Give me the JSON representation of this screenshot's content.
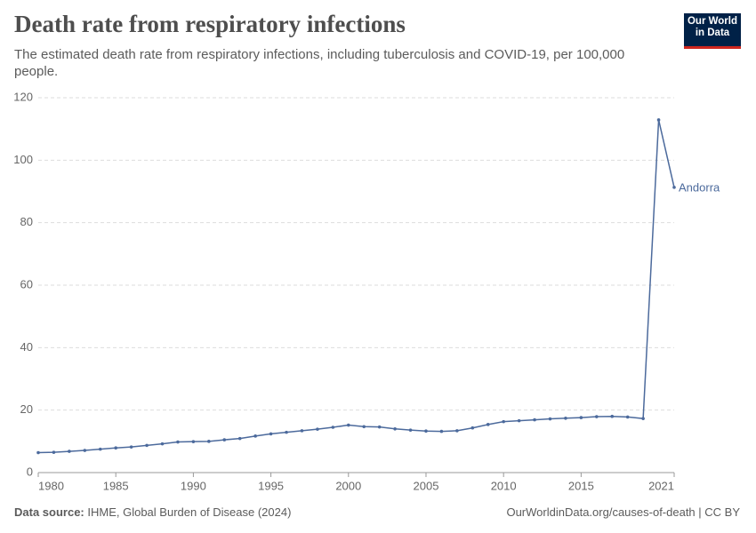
{
  "chart_data": {
    "type": "line",
    "title": "Death rate from respiratory infections",
    "subtitle": "The estimated death rate from respiratory infections, including tuberculosis and COVID-19, per 100,000 people.",
    "x": [
      1980,
      1981,
      1982,
      1983,
      1984,
      1985,
      1986,
      1987,
      1988,
      1989,
      1990,
      1991,
      1992,
      1993,
      1994,
      1995,
      1996,
      1997,
      1998,
      1999,
      2000,
      2001,
      2002,
      2003,
      2004,
      2005,
      2006,
      2007,
      2008,
      2009,
      2010,
      2011,
      2012,
      2013,
      2014,
      2015,
      2016,
      2017,
      2018,
      2019,
      2020,
      2021
    ],
    "series": [
      {
        "name": "Andorra",
        "color": "#4c6a9c",
        "values": [
          6.4,
          6.5,
          6.8,
          7.1,
          7.5,
          7.9,
          8.2,
          8.7,
          9.2,
          9.8,
          9.9,
          10.0,
          10.5,
          10.9,
          11.7,
          12.4,
          12.9,
          13.4,
          13.9,
          14.5,
          15.2,
          14.7,
          14.6,
          14.0,
          13.6,
          13.3,
          13.2,
          13.4,
          14.3,
          15.4,
          16.3,
          16.6,
          16.9,
          17.2,
          17.4,
          17.6,
          17.9,
          18.0,
          17.8,
          17.3,
          112.9,
          91.3
        ]
      }
    ],
    "xlim": [
      1980,
      2021
    ],
    "xticks": [
      1980,
      1985,
      1990,
      1995,
      2000,
      2005,
      2010,
      2015,
      2021
    ],
    "ylim": [
      0,
      120
    ],
    "yticks": [
      0,
      20,
      40,
      60,
      80,
      100,
      120
    ],
    "grid": true,
    "source_label": "Data source:",
    "source": "IHME, Global Burden of Disease (2024)",
    "url": "OurWorldinData.org/causes-of-death | CC BY",
    "logo": [
      "Our World",
      "in Data"
    ]
  }
}
